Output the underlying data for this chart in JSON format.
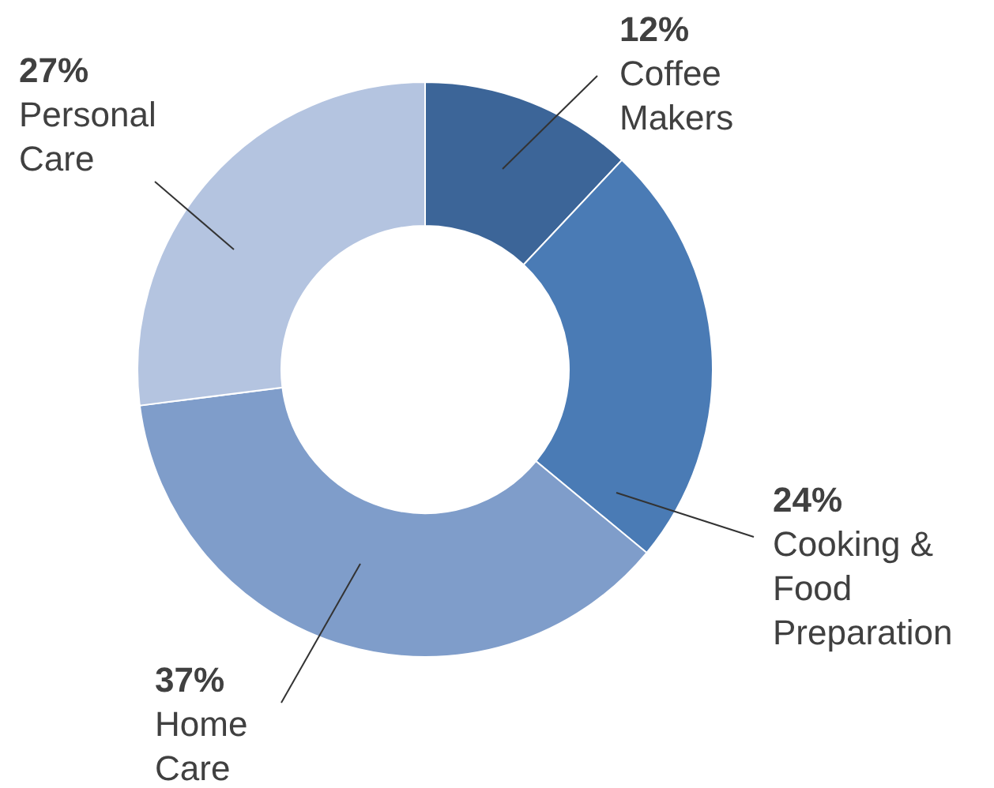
{
  "chart_data": {
    "type": "donut",
    "categories": [
      "Coffee Makers",
      "Cooking & Food Preparation",
      "Home Care",
      "Personal Care"
    ],
    "values": [
      12,
      24,
      37,
      27
    ],
    "colors": [
      "#3c6598",
      "#4a7bb5",
      "#7f9dca",
      "#b4c4e0"
    ],
    "value_labels": [
      "12%",
      "24%",
      "37%",
      "27%"
    ],
    "legend": false
  }
}
